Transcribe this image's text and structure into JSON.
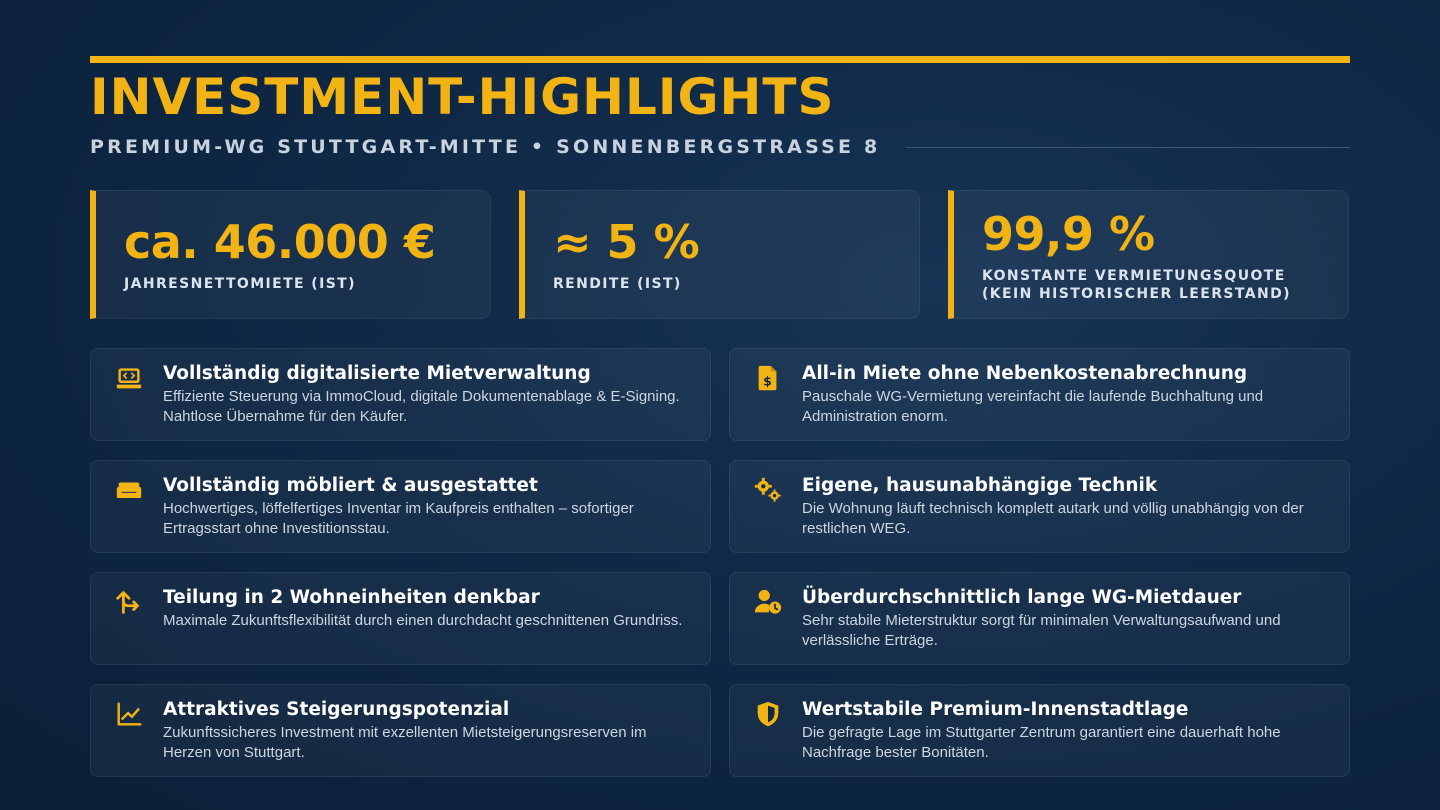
{
  "header": {
    "title": "INVESTMENT-HIGHLIGHTS",
    "subtitle": "PREMIUM-WG STUTTGART-MITTE • SONNENBERGSTRASSE 8"
  },
  "stats": [
    {
      "value": "ca. 46.000 €",
      "label_line1": "JAHRESNETTOMIETE (IST)",
      "label_line2": ""
    },
    {
      "value": "≈ 5 %",
      "label_line1": "RENDITE (IST)",
      "label_line2": ""
    },
    {
      "value": "99,9 %",
      "label_line1": "KONSTANTE VERMIETUNGSQUOTE",
      "label_line2": "(KEIN HISTORISCHER LEERSTAND)"
    }
  ],
  "features": [
    {
      "icon": "laptop-code-icon",
      "title": "Vollständig digitalisierte Mietverwaltung",
      "desc": "Effiziente Steuerung via ImmoCloud, digitale Dokumentenablage & E-Signing. Nahtlose Übernahme für den Käufer."
    },
    {
      "icon": "file-invoice-dollar-icon",
      "title": "All-in Miete ohne Nebenkostenabrechnung",
      "desc": "Pauschale WG-Vermietung vereinfacht die laufende Buchhaltung und Administration enorm."
    },
    {
      "icon": "couch-icon",
      "title": "Vollständig möbliert & ausgestattet",
      "desc": "Hochwertiges, löffelfertiges Inventar im Kaufpreis enthalten – sofortiger Ertragsstart ohne Investitionsstau."
    },
    {
      "icon": "gears-icon",
      "title": "Eigene, hausunabhängige Technik",
      "desc": "Die Wohnung läuft technisch komplett autark und völlig unabhängig von der restlichen WEG."
    },
    {
      "icon": "split-arrows-icon",
      "title": "Teilung in 2 Wohneinheiten denkbar",
      "desc": "Maximale Zukunftsflexibilität durch einen durchdacht geschnittenen Grundriss."
    },
    {
      "icon": "user-clock-icon",
      "title": "Überdurchschnittlich lange WG-Mietdauer",
      "desc": "Sehr stabile Mieterstruktur sorgt für minimalen Verwaltungsaufwand und verlässliche Erträge."
    },
    {
      "icon": "chart-line-icon",
      "title": "Attraktives Steigerungspotenzial",
      "desc": "Zukunftssicheres Investment mit exzellenten Mietsteigerungsreserven im Herzen von Stuttgart."
    },
    {
      "icon": "shield-icon",
      "title": "Wertstabile Premium-Innenstadtlage",
      "desc": "Die gefragte Lage im Stuttgarter Zentrum garantiert eine dauerhaft hohe Nachfrage bester Bonitäten."
    }
  ],
  "colors": {
    "accent": "#f2b315",
    "background": "#0f2845",
    "text": "#ffffff",
    "muted": "#cdd6e0"
  }
}
